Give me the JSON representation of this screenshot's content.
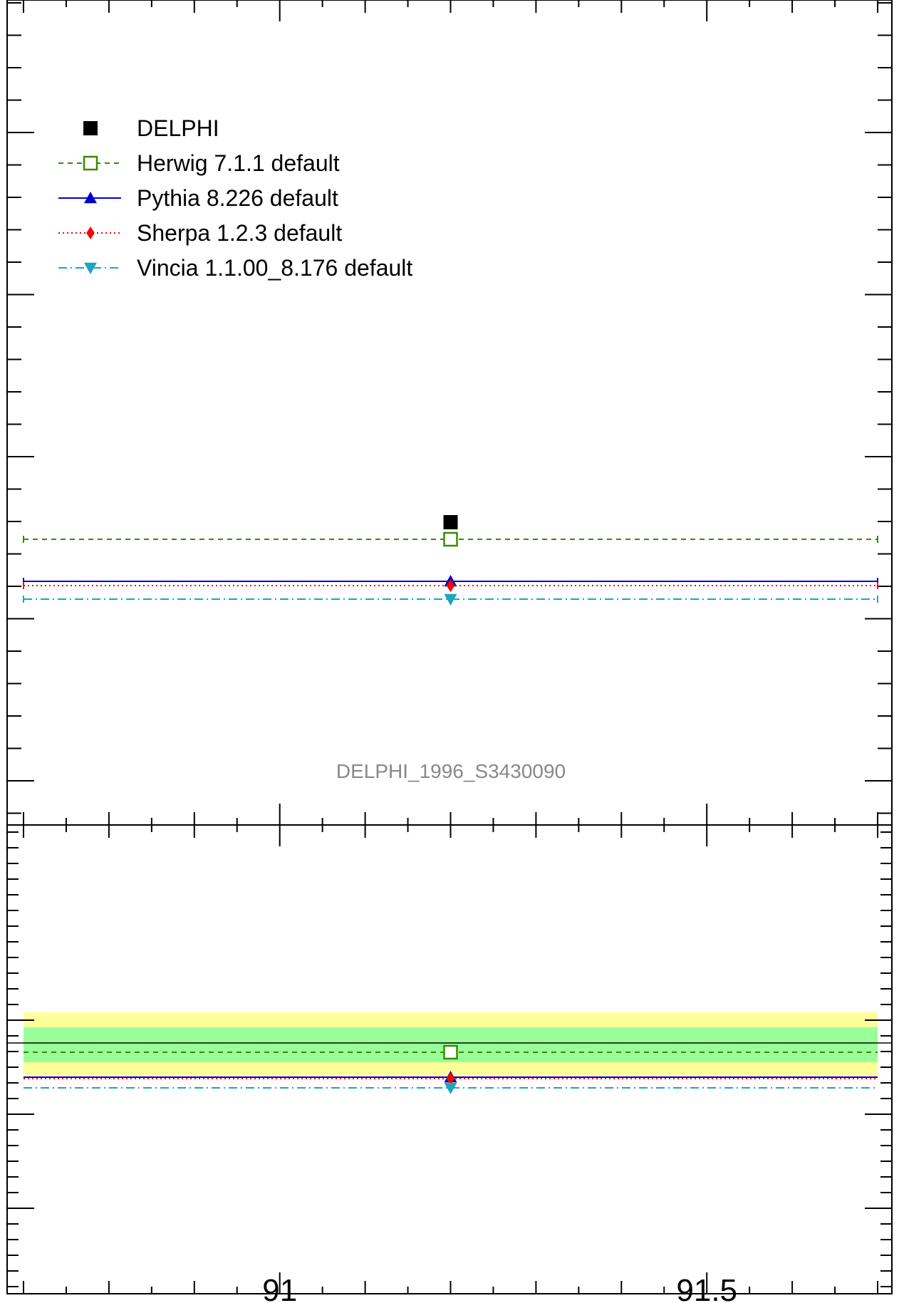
{
  "chart_data": [
    {
      "type": "scatter",
      "panel": "main",
      "watermark": "DELPHI_1996_S3430090",
      "x_range": [
        90.7,
        91.7
      ],
      "bin": [
        90.7,
        91.7
      ],
      "series": [
        {
          "name": "DELPHI",
          "color": "#000000",
          "marker": "filled-square",
          "line": "none",
          "x": 91.2
        },
        {
          "name": "Herwig 7.1.1 default",
          "color": "#3a8a00",
          "marker": "open-square",
          "line": "dashed",
          "x": 91.2
        },
        {
          "name": "Pythia 8.226 default",
          "color": "#0000cc",
          "marker": "triangle-up",
          "line": "solid",
          "x": 91.2
        },
        {
          "name": "Sherpa 1.2.3 default",
          "color": "#ff0000",
          "marker": "diamond",
          "line": "dotted",
          "x": 91.2
        },
        {
          "name": "Vincia 1.1.00_8.176 default",
          "color": "#1fa3bf",
          "marker": "triangle-down",
          "line": "dash-dot",
          "x": 91.2
        }
      ]
    },
    {
      "type": "scatter",
      "panel": "ratio",
      "x_range": [
        90.7,
        91.7
      ],
      "x_ticks": [
        {
          "value": 91,
          "label": "91"
        },
        {
          "value": 91.5,
          "label": "91.5"
        }
      ],
      "bands": [
        {
          "name": "outer",
          "color": "#ffff99"
        },
        {
          "name": "inner",
          "color": "#99ff99"
        }
      ]
    }
  ]
}
